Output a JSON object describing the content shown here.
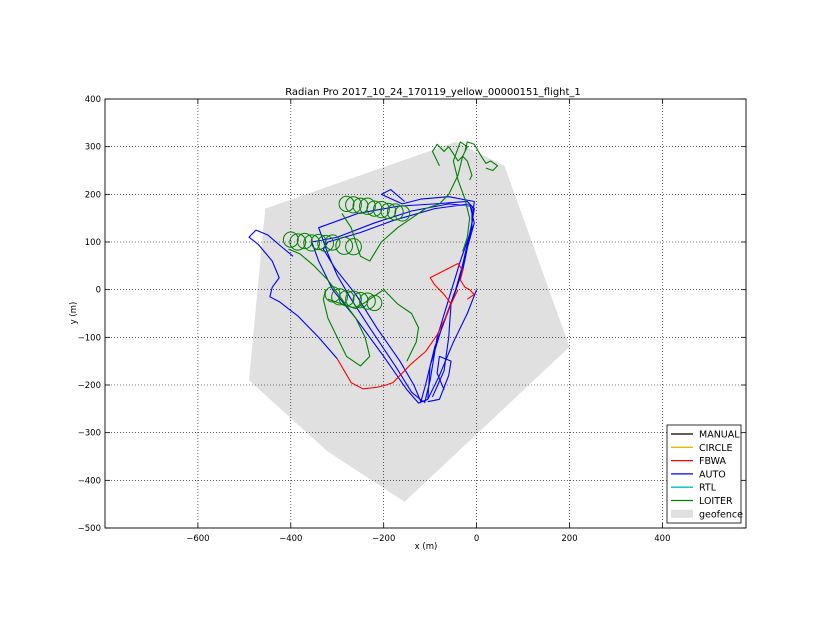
{
  "chart_data": {
    "type": "line",
    "title": "Radian Pro 2017_10_24_170119_yellow_00000151_flight_1",
    "xlabel": "x (m)",
    "ylabel": "y (m)",
    "xlim": [
      -800,
      580
    ],
    "ylim": [
      -500,
      400
    ],
    "xticks": [
      -600,
      -400,
      -200,
      0,
      200,
      400
    ],
    "yticks": [
      400,
      300,
      200,
      100,
      0,
      -100,
      -200,
      -300,
      -400,
      -500
    ],
    "grid": true,
    "legend_position": "bottom-right",
    "colors": {
      "MANUAL": "#000000",
      "CIRCLE": "#e6b800",
      "FBWA": "#ff0000",
      "AUTO": "#0000ff",
      "RTL": "#00bfbf",
      "LOITER": "#008000",
      "geofence": "#e0e0e0"
    },
    "legend": [
      "MANUAL",
      "CIRCLE",
      "FBWA",
      "AUTO",
      "RTL",
      "LOITER",
      "geofence"
    ],
    "geofence": [
      [
        -45,
        310
      ],
      [
        60,
        260
      ],
      [
        200,
        -120
      ],
      [
        -155,
        -445
      ],
      [
        -320,
        -340
      ],
      [
        -490,
        -190
      ],
      [
        -455,
        170
      ]
    ],
    "series": [
      {
        "name": "AUTO",
        "paths": [
          [
            [
              0,
              0
            ],
            [
              -20,
              -50
            ],
            [
              -50,
              -110
            ],
            [
              -80,
              -180
            ],
            [
              -105,
              -230
            ],
            [
              -115,
              -235
            ],
            [
              -140,
              -215
            ],
            [
              -175,
              -160
            ],
            [
              -230,
              -80
            ],
            [
              -270,
              -20
            ],
            [
              -300,
              30
            ],
            [
              -320,
              75
            ],
            [
              -340,
              130
            ],
            [
              -255,
              160
            ],
            [
              -170,
              175
            ],
            [
              -90,
              180
            ],
            [
              -20,
              185
            ],
            [
              -5,
              170
            ],
            [
              -15,
              110
            ],
            [
              -30,
              40
            ],
            [
              -55,
              -30
            ],
            [
              -90,
              -120
            ],
            [
              -110,
              -200
            ],
            [
              -120,
              -235
            ],
            [
              -135,
              -200
            ],
            [
              -165,
              -150
            ],
            [
              -215,
              -80
            ],
            [
              -260,
              -10
            ],
            [
              -305,
              45
            ],
            [
              -330,
              85
            ],
            [
              -320,
              100
            ],
            [
              -250,
              120
            ],
            [
              -180,
              145
            ],
            [
              -90,
              170
            ],
            [
              -15,
              180
            ],
            [
              -5,
              140
            ],
            [
              -25,
              70
            ],
            [
              -45,
              0
            ],
            [
              -75,
              -80
            ],
            [
              -100,
              -160
            ],
            [
              -105,
              -230
            ],
            [
              -125,
              -238
            ],
            [
              -150,
              -210
            ],
            [
              -200,
              -140
            ],
            [
              -260,
              -60
            ],
            [
              -310,
              0
            ],
            [
              -340,
              60
            ],
            [
              -355,
              100
            ],
            [
              -300,
              110
            ],
            [
              -220,
              140
            ],
            [
              -140,
              165
            ],
            [
              -60,
              180
            ],
            [
              -10,
              175
            ],
            [
              -10,
              130
            ],
            [
              -35,
              60
            ],
            [
              -60,
              -20
            ],
            [
              -85,
              -100
            ],
            [
              -100,
              -190
            ],
            [
              -112,
              -238
            ]
          ],
          [
            [
              -300,
              -145
            ],
            [
              -340,
              -100
            ],
            [
              -385,
              -55
            ],
            [
              -425,
              -25
            ],
            [
              -445,
              -15
            ],
            [
              -440,
              5
            ],
            [
              -425,
              25
            ],
            [
              -440,
              60
            ],
            [
              -470,
              95
            ],
            [
              -490,
              110
            ],
            [
              -475,
              125
            ],
            [
              -450,
              115
            ],
            [
              -420,
              90
            ],
            [
              -395,
              70
            ]
          ],
          [
            [
              -95,
              -225
            ],
            [
              -70,
              -170
            ],
            [
              -60,
              -100
            ],
            [
              -55,
              -30
            ],
            [
              -35,
              30
            ],
            [
              -10,
              140
            ],
            [
              -5,
              185
            ],
            [
              -60,
              195
            ],
            [
              -120,
              190
            ],
            [
              -160,
              180
            ],
            [
              -205,
              200
            ],
            [
              -185,
              210
            ],
            [
              -155,
              185
            ]
          ],
          [
            [
              -105,
              -235
            ],
            [
              -80,
              -230
            ],
            [
              -60,
              -180
            ],
            [
              -55,
              -150
            ],
            [
              -80,
              -140
            ],
            [
              -85,
              -175
            ],
            [
              -70,
              -210
            ]
          ]
        ]
      },
      {
        "name": "FBWA",
        "paths": [
          [
            [
              -300,
              -145
            ],
            [
              -285,
              -170
            ],
            [
              -270,
              -195
            ],
            [
              -245,
              -208
            ],
            [
              -215,
              -205
            ],
            [
              -195,
              -200
            ],
            [
              -180,
              -195
            ],
            [
              -160,
              -175
            ],
            [
              -140,
              -155
            ],
            [
              -110,
              -130
            ],
            [
              -85,
              -95
            ],
            [
              -65,
              -55
            ],
            [
              -55,
              -30
            ],
            [
              -40,
              0
            ]
          ],
          [
            [
              -55,
              -30
            ],
            [
              -70,
              -10
            ],
            [
              -90,
              10
            ],
            [
              -100,
              25
            ],
            [
              -80,
              35
            ],
            [
              -60,
              45
            ],
            [
              -40,
              55
            ],
            [
              -30,
              40
            ],
            [
              -35,
              20
            ],
            [
              -25,
              5
            ],
            [
              -15,
              0
            ],
            [
              -5,
              -10
            ],
            [
              -20,
              -20
            ]
          ]
        ]
      },
      {
        "name": "LOITER",
        "paths": [
          [
            [
              -405,
              85
            ],
            [
              -380,
              75
            ],
            [
              -350,
              50
            ],
            [
              -320,
              20
            ],
            [
              -290,
              -20
            ],
            [
              -260,
              -60
            ],
            [
              -240,
              -100
            ],
            [
              -230,
              -140
            ],
            [
              -250,
              -160
            ],
            [
              -280,
              -140
            ],
            [
              -300,
              -100
            ],
            [
              -320,
              -60
            ],
            [
              -330,
              -20
            ],
            [
              -325,
              0
            ]
          ],
          [
            [
              -320,
              -20
            ],
            [
              -290,
              -30
            ],
            [
              -260,
              -40
            ],
            [
              -230,
              -20
            ],
            [
              -200,
              0
            ],
            [
              -170,
              -30
            ],
            [
              -140,
              -50
            ],
            [
              -125,
              -80
            ],
            [
              -130,
              -110
            ],
            [
              -140,
              -130
            ],
            [
              -150,
              -150
            ]
          ],
          [
            [
              -290,
              160
            ],
            [
              -270,
              130
            ],
            [
              -260,
              100
            ],
            [
              -250,
              70
            ],
            [
              -230,
              60
            ],
            [
              -205,
              100
            ],
            [
              -170,
              130
            ],
            [
              -140,
              150
            ],
            [
              -110,
              170
            ],
            [
              -80,
              180
            ],
            [
              -60,
              200
            ],
            [
              -40,
              240
            ],
            [
              -30,
              280
            ],
            [
              -20,
              300
            ],
            [
              -35,
              310
            ],
            [
              -50,
              270
            ],
            [
              -40,
              230
            ],
            [
              -25,
              190
            ],
            [
              -15,
              150
            ],
            [
              -20,
              110
            ],
            [
              -30,
              80
            ]
          ],
          [
            [
              -80,
              260
            ],
            [
              -95,
              290
            ],
            [
              -85,
              305
            ],
            [
              -70,
              290
            ],
            [
              -60,
              300
            ],
            [
              -50,
              285
            ],
            [
              -40,
              270
            ],
            [
              -30,
              280
            ],
            [
              -20,
              270
            ],
            [
              -15,
              255
            ],
            [
              -10,
              240
            ],
            [
              -15,
              230
            ]
          ],
          [
            [
              -25,
              290
            ],
            [
              -20,
              310
            ],
            [
              -5,
              305
            ],
            [
              10,
              280
            ],
            [
              20,
              265
            ],
            [
              30,
              270
            ],
            [
              45,
              260
            ],
            [
              35,
              250
            ],
            [
              20,
              255
            ]
          ]
        ],
        "loops": [
          {
            "cx": -400,
            "cy": 105,
            "r": 16
          },
          {
            "cx": -385,
            "cy": 100,
            "r": 17
          },
          {
            "cx": -370,
            "cy": 102,
            "r": 16
          },
          {
            "cx": -355,
            "cy": 98,
            "r": 17
          },
          {
            "cx": -340,
            "cy": 100,
            "r": 16
          },
          {
            "cx": -325,
            "cy": 97,
            "r": 17
          },
          {
            "cx": -310,
            "cy": 99,
            "r": 16
          },
          {
            "cx": -285,
            "cy": 92,
            "r": 18
          },
          {
            "cx": -265,
            "cy": 90,
            "r": 17
          },
          {
            "cx": -280,
            "cy": 180,
            "r": 16
          },
          {
            "cx": -265,
            "cy": 178,
            "r": 17
          },
          {
            "cx": -250,
            "cy": 176,
            "r": 16
          },
          {
            "cx": -235,
            "cy": 175,
            "r": 17
          },
          {
            "cx": -220,
            "cy": 170,
            "r": 16
          },
          {
            "cx": -205,
            "cy": 168,
            "r": 17
          },
          {
            "cx": -190,
            "cy": 165,
            "r": 16
          },
          {
            "cx": -175,
            "cy": 163,
            "r": 17
          },
          {
            "cx": -160,
            "cy": 160,
            "r": 16
          },
          {
            "cx": -310,
            "cy": -10,
            "r": 16
          },
          {
            "cx": -295,
            "cy": -15,
            "r": 17
          },
          {
            "cx": -280,
            "cy": -18,
            "r": 16
          },
          {
            "cx": -265,
            "cy": -20,
            "r": 17
          },
          {
            "cx": -250,
            "cy": -22,
            "r": 16
          },
          {
            "cx": -235,
            "cy": -24,
            "r": 17
          },
          {
            "cx": -220,
            "cy": -28,
            "r": 16
          }
        ]
      },
      {
        "name": "MANUAL",
        "paths": []
      },
      {
        "name": "CIRCLE",
        "paths": []
      },
      {
        "name": "RTL",
        "paths": []
      }
    ]
  }
}
